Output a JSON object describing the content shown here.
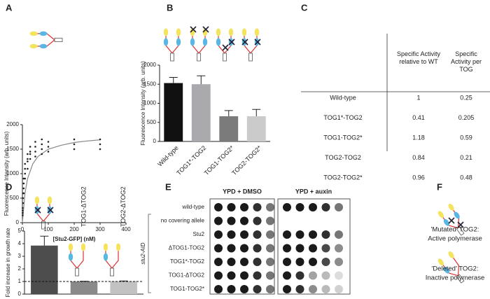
{
  "panel_labels": [
    "A",
    "B",
    "C",
    "D",
    "E",
    "F"
  ],
  "chart_data": [
    {
      "type": "scatter",
      "xlabel": "[Stu2-GFP] (nM)",
      "ylabel": "Fluorescence Intensity (arb. units)",
      "x": [
        1,
        1,
        1,
        1,
        2.5,
        2.5,
        2.5,
        5,
        5,
        5,
        5,
        10,
        10,
        10,
        10,
        20,
        20,
        20,
        20,
        30,
        30,
        30,
        30,
        50,
        50,
        50,
        50,
        75,
        75,
        75,
        75,
        100,
        100,
        100,
        200,
        200,
        200,
        300,
        300,
        300
      ],
      "y": [
        150,
        250,
        300,
        200,
        400,
        500,
        600,
        600,
        700,
        800,
        900,
        900,
        1000,
        1100,
        1200,
        1100,
        1250,
        1300,
        1400,
        1300,
        1400,
        1450,
        1550,
        1350,
        1450,
        1550,
        1650,
        1400,
        1500,
        1600,
        1700,
        1450,
        1550,
        1650,
        1500,
        1600,
        1700,
        1500,
        1600,
        1700
      ],
      "color": "#222222",
      "fit": {
        "x": [
          0,
          10,
          20,
          40,
          60,
          100,
          150,
          200,
          250,
          300
        ],
        "y": [
          0,
          600,
          900,
          1200,
          1350,
          1500,
          1580,
          1636,
          1667,
          1690
        ],
        "color": "#888888"
      },
      "xlim": [
        0,
        400
      ],
      "xticks": [
        0,
        100,
        200,
        300,
        400
      ],
      "ylim": [
        0,
        2000
      ],
      "yticks": [
        0,
        500,
        1000,
        1500,
        2000
      ]
    },
    {
      "type": "bar",
      "ylabel": "Fluorescence Intensity (arb. units)",
      "categories": [
        "Wild-type",
        "TOG1*-TOG2",
        "TOG1-TOG2*",
        "TOG2-TOG2*"
      ],
      "values": [
        1530,
        1500,
        660,
        660
      ],
      "errors": [
        150,
        220,
        150,
        180
      ],
      "colors": [
        "#111111",
        "#a9a9ae",
        "#7b7b7b",
        "#cbcbcb"
      ],
      "ylim": [
        0,
        2000
      ],
      "yticks": [
        0,
        500,
        1000,
        1500,
        2000
      ]
    },
    {
      "type": "bar",
      "ylabel": "Fold increase in growth rate",
      "categories": [
        null,
        "TOG1-ΔTOG2",
        "TOG2-ΔTOG2"
      ],
      "values": [
        3.85,
        1.0,
        1.02
      ],
      "errors": [
        0.75,
        0.02,
        0.02
      ],
      "colors": [
        "#4d4d4d",
        "#8a8a8a",
        "#c2c2c2"
      ],
      "reference_line": 1,
      "ylim": [
        0,
        5
      ],
      "yticks": [
        0,
        1,
        2,
        3,
        4,
        5
      ]
    }
  ],
  "table": {
    "header": [
      "Specific Activity relative to WT",
      "Specific Activity per TOG"
    ],
    "rows": [
      [
        "Wild-type",
        1,
        0.25
      ],
      [
        "TOG1*-TOG2",
        0.41,
        0.205
      ],
      [
        "TOG1-TOG2*",
        1.18,
        0.59
      ],
      [
        "TOG2-TOG2",
        0.84,
        0.21
      ],
      [
        "TOG2-TOG2*",
        0.96,
        0.48
      ]
    ]
  },
  "spot_assay": {
    "plates": [
      "YPD + DMSO",
      "YPD + auxin"
    ],
    "group_label": "stu2-AID",
    "rows": [
      {
        "label": "wild-type",
        "dmso": [
          1,
          1,
          1,
          0.9,
          0.6
        ],
        "auxin": [
          1,
          1,
          1,
          0.9,
          0.6
        ]
      },
      {
        "label": "no covering allele",
        "dmso": [
          1,
          1,
          1,
          0.9,
          0.6
        ],
        "auxin": [
          0,
          0,
          0,
          0,
          0
        ]
      },
      {
        "label": "Stu2",
        "dmso": [
          1,
          1,
          1,
          0.9,
          0.6
        ],
        "auxin": [
          1,
          1,
          1,
          0.9,
          0.6
        ]
      },
      {
        "label": "ΔTOG1-TOG2",
        "dmso": [
          1,
          1,
          1,
          0.9,
          0.6
        ],
        "auxin": [
          1,
          1,
          1,
          0.8,
          0.5
        ]
      },
      {
        "label": "TOG1*-TOG2",
        "dmso": [
          1,
          1,
          1,
          0.9,
          0.6
        ],
        "auxin": [
          1,
          1,
          1,
          0.8,
          0.5
        ]
      },
      {
        "label": "TOG1-ΔTOG2",
        "dmso": [
          1,
          1,
          1,
          0.9,
          0.6
        ],
        "auxin": [
          1,
          0.9,
          0.4,
          0.3,
          0.15
        ]
      },
      {
        "label": "TOG1-TOG2*",
        "dmso": [
          1,
          1,
          1,
          0.9,
          0.6
        ],
        "auxin": [
          1,
          0.9,
          0.5,
          0.3,
          0.2
        ]
      }
    ]
  },
  "diagram": [
    {
      "title": "'Mutated' TOG2:",
      "text": "Active polymerase"
    },
    {
      "title": "'Deleted' TOG2:",
      "text": "Inactive polymerase"
    }
  ]
}
